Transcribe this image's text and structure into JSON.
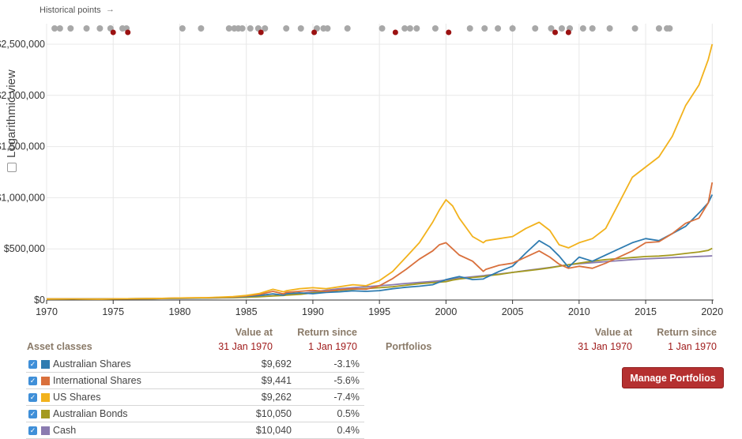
{
  "historical_points_label": "Historical points",
  "log_view_label": "Logarithmic view",
  "historical_points": {
    "grey": [
      1970.6,
      1971.0,
      1971.8,
      1973.0,
      1974.0,
      1974.8,
      1975.7,
      1976.0,
      1980.2,
      1981.6,
      1983.7,
      1984.1,
      1984.4,
      1984.7,
      1985.3,
      1985.9,
      1986.4,
      1988.0,
      1989.1,
      1990.3,
      1990.8,
      1991.1,
      1992.6,
      1995.2,
      1996.9,
      1997.3,
      1997.8,
      1999.2,
      2001.8,
      2002.9,
      2003.9,
      2005.0,
      2006.7,
      2007.9,
      2008.7,
      2009.3,
      2010.3,
      2011.0,
      2012.3,
      2014.2,
      2016.0,
      2016.6,
      2016.8
    ],
    "red": [
      1975.0,
      1976.1,
      1986.1,
      1990.1,
      1996.2,
      2000.2,
      2008.2,
      2009.2
    ]
  },
  "chart_data": {
    "type": "line",
    "x": [
      1970,
      1972,
      1974,
      1976,
      1978,
      1980,
      1982,
      1984,
      1985,
      1986,
      1987,
      1987.8,
      1988,
      1989,
      1990,
      1991,
      1992,
      1993,
      1994,
      1995,
      1996,
      1997,
      1998,
      1999,
      1999.5,
      2000,
      2000.5,
      2001,
      2002,
      2002.8,
      2003,
      2004,
      2005,
      2006,
      2007,
      2007.8,
      2008.5,
      2009.2,
      2010,
      2011,
      2012,
      2013,
      2014,
      2015,
      2016,
      2017,
      2018,
      2019,
      2019.7,
      2020
    ],
    "xlim": [
      1970,
      2020.1
    ],
    "ylim": [
      0,
      2700000
    ],
    "yticks": [
      0,
      500000,
      1000000,
      1500000,
      2000000,
      2500000
    ],
    "ytick_labels": [
      "$0",
      "$500,000",
      "$1,000,000",
      "$1,500,000",
      "$2,000,000",
      "$2,500,000"
    ],
    "xticks": [
      1970,
      1975,
      1980,
      1985,
      1990,
      1995,
      2000,
      2005,
      2010,
      2015,
      2020
    ],
    "grid": true,
    "series": [
      {
        "name": "Australian Shares",
        "color": "#2f7cb1",
        "values": [
          10000,
          11000,
          9000,
          12000,
          14000,
          18000,
          20000,
          28000,
          35000,
          45000,
          60000,
          48000,
          62000,
          70000,
          62000,
          75000,
          80000,
          90000,
          85000,
          92000,
          110000,
          125000,
          135000,
          150000,
          175000,
          200000,
          215000,
          230000,
          200000,
          205000,
          220000,
          280000,
          330000,
          460000,
          580000,
          520000,
          430000,
          320000,
          420000,
          380000,
          440000,
          500000,
          560000,
          600000,
          580000,
          650000,
          720000,
          850000,
          950000,
          1030000
        ]
      },
      {
        "name": "International Shares",
        "color": "#d9703c",
        "values": [
          10000,
          11000,
          9000,
          12000,
          15000,
          20000,
          22000,
          30000,
          40000,
          55000,
          85000,
          60000,
          75000,
          85000,
          95000,
          85000,
          100000,
          110000,
          105000,
          140000,
          210000,
          300000,
          400000,
          480000,
          540000,
          560000,
          500000,
          440000,
          380000,
          280000,
          300000,
          340000,
          360000,
          420000,
          480000,
          420000,
          350000,
          310000,
          330000,
          310000,
          360000,
          420000,
          480000,
          560000,
          570000,
          650000,
          750000,
          800000,
          950000,
          1150000
        ]
      },
      {
        "name": "US Shares",
        "color": "#f2b21c",
        "values": [
          10000,
          11000,
          9000,
          12000,
          14000,
          20000,
          23000,
          33000,
          45000,
          65000,
          105000,
          80000,
          90000,
          110000,
          120000,
          110000,
          130000,
          150000,
          140000,
          190000,
          280000,
          420000,
          560000,
          760000,
          880000,
          980000,
          920000,
          800000,
          620000,
          560000,
          580000,
          600000,
          620000,
          700000,
          760000,
          680000,
          540000,
          510000,
          560000,
          600000,
          700000,
          950000,
          1200000,
          1300000,
          1400000,
          1600000,
          1900000,
          2100000,
          2350000,
          2500000
        ]
      },
      {
        "name": "Australian Bonds",
        "color": "#a49a1f",
        "values": [
          10000,
          10500,
          11000,
          12000,
          14000,
          16000,
          19000,
          23000,
          27000,
          32000,
          40000,
          45000,
          48000,
          55000,
          70000,
          80000,
          95000,
          105000,
          112000,
          120000,
          130000,
          145000,
          160000,
          170000,
          175000,
          180000,
          195000,
          205000,
          220000,
          230000,
          235000,
          250000,
          270000,
          285000,
          300000,
          315000,
          330000,
          345000,
          360000,
          380000,
          395000,
          405000,
          415000,
          425000,
          430000,
          440000,
          455000,
          470000,
          485000,
          505000
        ]
      },
      {
        "name": "Cash",
        "color": "#8a7bb0",
        "values": [
          10000,
          10500,
          11500,
          12500,
          14000,
          16000,
          19000,
          24000,
          28000,
          34000,
          42000,
          48000,
          52000,
          62000,
          80000,
          95000,
          110000,
          120000,
          130000,
          140000,
          150000,
          162000,
          172000,
          182000,
          188000,
          195000,
          205000,
          215000,
          228000,
          238000,
          242000,
          255000,
          270000,
          288000,
          305000,
          318000,
          332000,
          345000,
          355000,
          365000,
          375000,
          385000,
          395000,
          402000,
          408000,
          414000,
          420000,
          426000,
          430000,
          432000
        ]
      }
    ]
  },
  "assets_table": {
    "heading": "Asset classes",
    "col_value_label": "Value at",
    "col_value_date": "31 Jan 1970",
    "col_return_label": "Return since",
    "col_return_date": "1 Jan 1970",
    "rows": [
      {
        "name": "Australian Shares",
        "value": "$9,692",
        "return": "-3.1%",
        "color": "#2f7cb1"
      },
      {
        "name": "International Shares",
        "value": "$9,441",
        "return": "-5.6%",
        "color": "#d9703c"
      },
      {
        "name": "US Shares",
        "value": "$9,262",
        "return": "-7.4%",
        "color": "#f2b21c"
      },
      {
        "name": "Australian Bonds",
        "value": "$10,050",
        "return": "0.5%",
        "color": "#a49a1f"
      },
      {
        "name": "Cash",
        "value": "$10,040",
        "return": "0.4%",
        "color": "#8a7bb0"
      }
    ]
  },
  "portfolios_table": {
    "heading": "Portfolios",
    "col_value_label": "Value at",
    "col_value_date": "31 Jan 1970",
    "col_return_label": "Return since",
    "col_return_date": "1 Jan 1970"
  },
  "manage_button_label": "Manage Portfolios"
}
